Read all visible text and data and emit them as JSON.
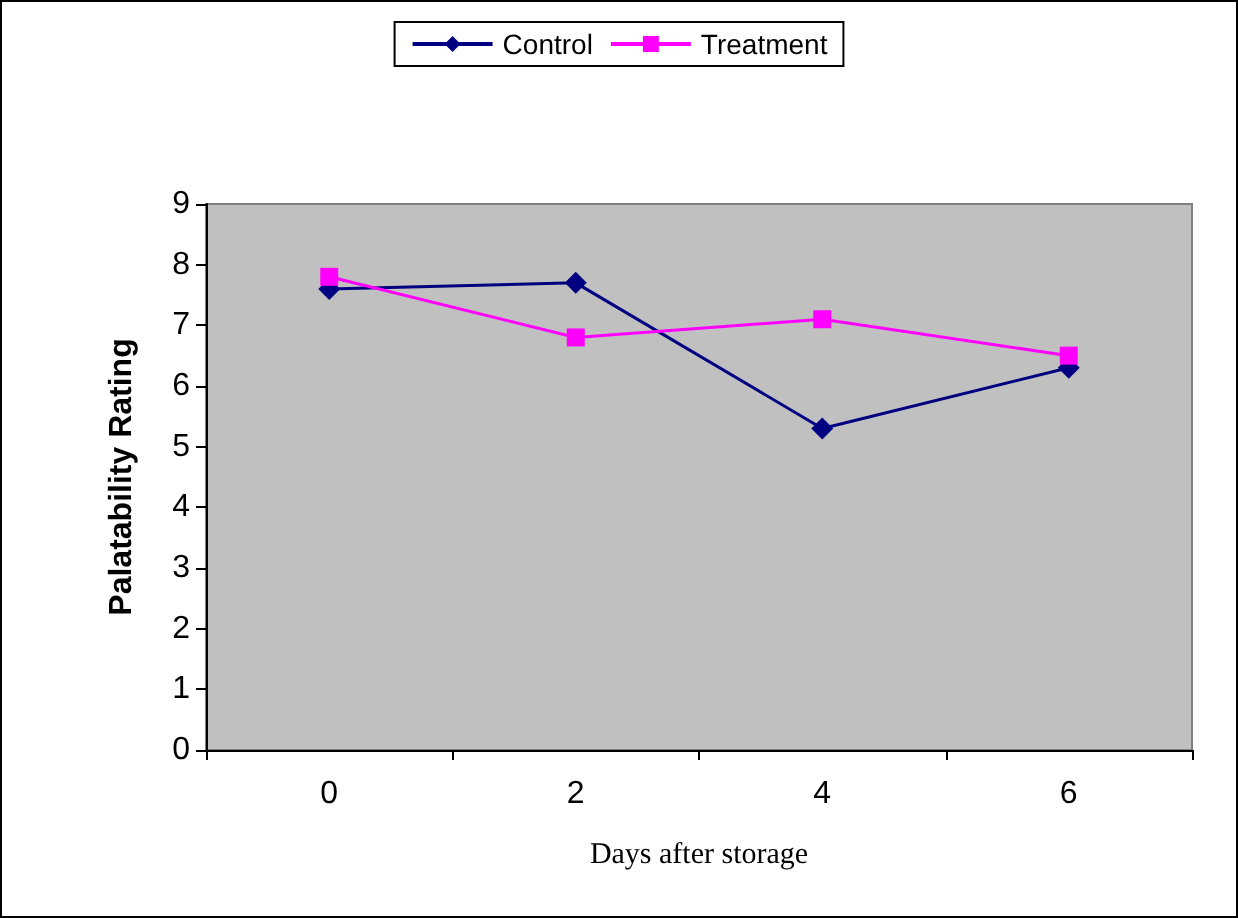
{
  "chart_data": {
    "type": "line",
    "xlabel": "Days after storage",
    "ylabel": "Palatability Rating",
    "categories": [
      "0",
      "2",
      "4",
      "6"
    ],
    "series": [
      {
        "name": "Control",
        "color": "#000080",
        "values": [
          7.6,
          7.7,
          5.3,
          6.3
        ],
        "marker": "diamond"
      },
      {
        "name": "Treatment",
        "color": "#ff00ff",
        "values": [
          7.8,
          6.8,
          7.1,
          6.5
        ],
        "marker": "square"
      }
    ],
    "ylim": [
      0,
      9
    ],
    "yticks": [
      0,
      1,
      2,
      3,
      4,
      5,
      6,
      7,
      8,
      9
    ],
    "grid": false,
    "legend": "top"
  }
}
